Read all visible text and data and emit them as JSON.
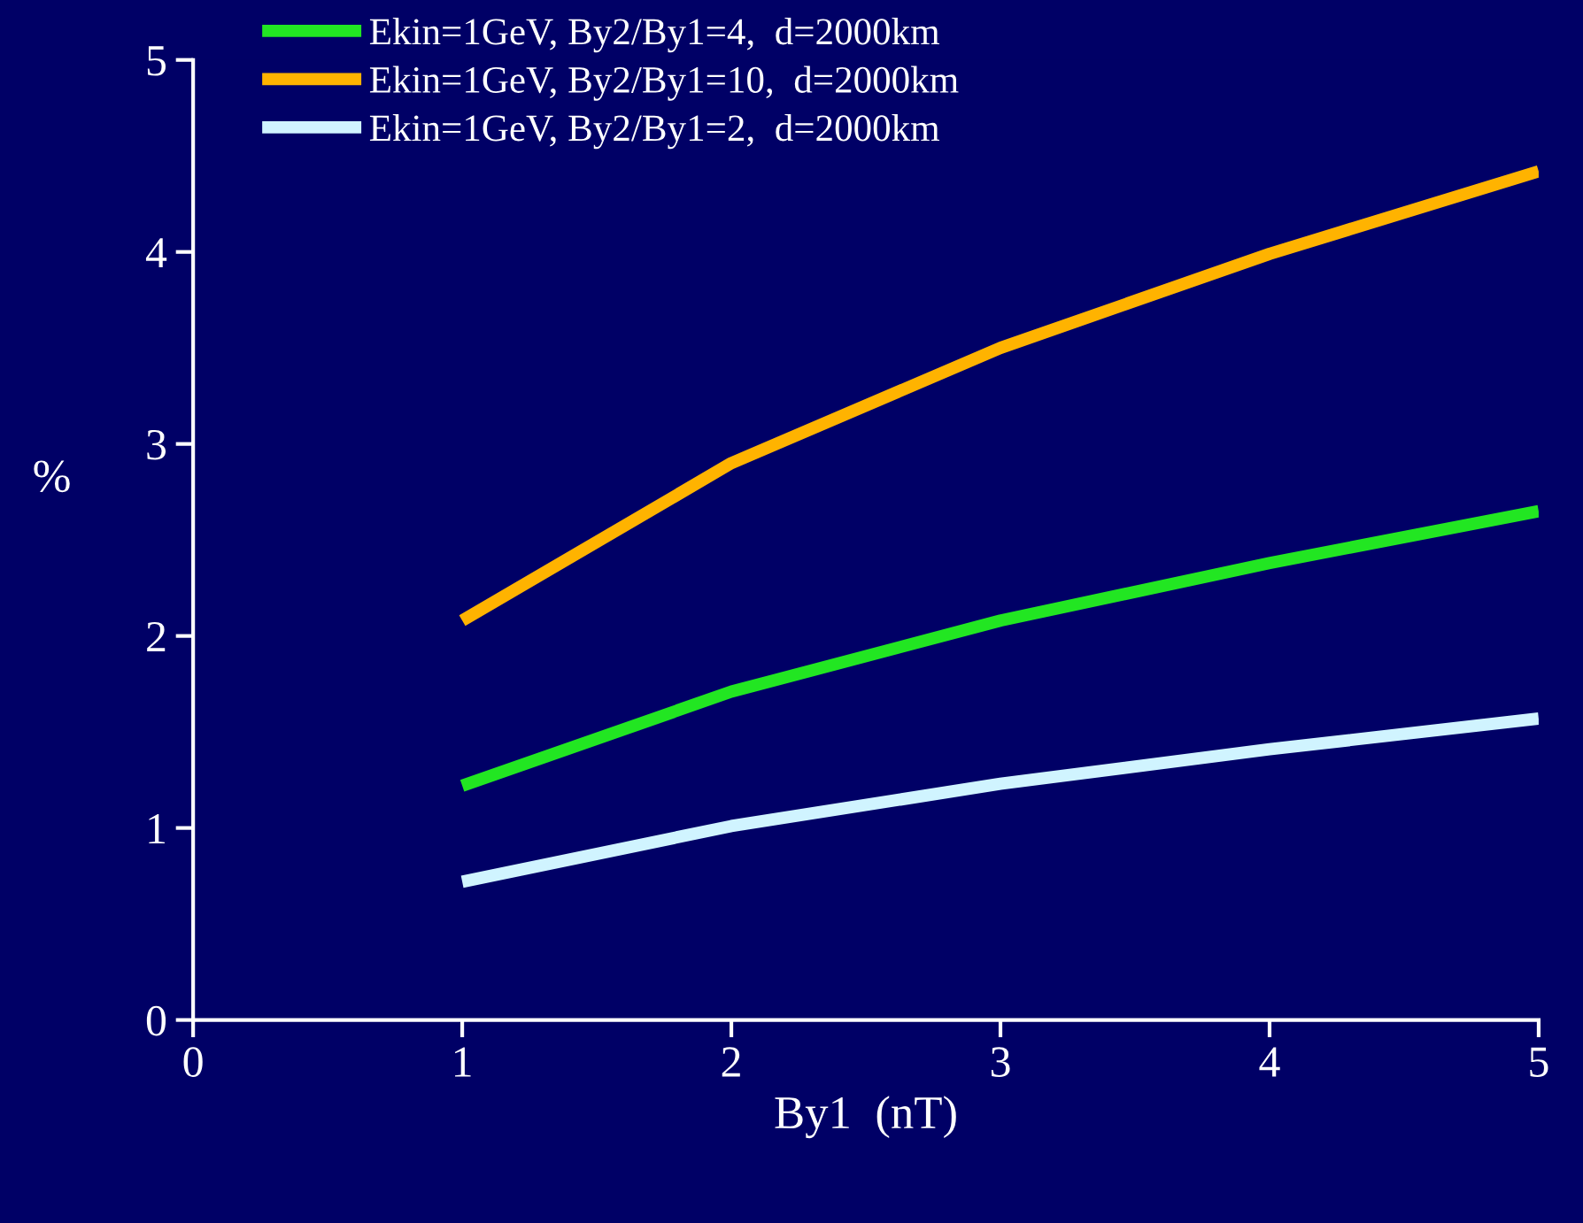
{
  "chart_data": {
    "type": "line",
    "xlabel": "By1  (nT)",
    "ylabel": "%",
    "x": [
      1,
      2,
      3,
      4,
      5
    ],
    "series": [
      {
        "name": "Ekin=1GeV, By2/By1=4,  d=2000km",
        "color": "#22e622",
        "values": [
          1.22,
          1.71,
          2.08,
          2.38,
          2.65
        ]
      },
      {
        "name": "Ekin=1GeV, By2/By1=10,  d=2000km",
        "color": "#ffb300",
        "values": [
          2.08,
          2.9,
          3.5,
          3.99,
          4.42
        ]
      },
      {
        "name": "Ekin=1GeV, By2/By1=2,  d=2000km",
        "color": "#d0f4ff",
        "values": [
          0.72,
          1.01,
          1.23,
          1.41,
          1.57
        ]
      }
    ],
    "xlim": [
      0,
      5
    ],
    "ylim": [
      0,
      5
    ],
    "xticks": [
      0,
      1,
      2,
      3,
      4,
      5
    ],
    "yticks": [
      0,
      1,
      2,
      3,
      4,
      5
    ],
    "grid": false,
    "legend": "top left",
    "marker": "none",
    "line_style": "solid"
  }
}
